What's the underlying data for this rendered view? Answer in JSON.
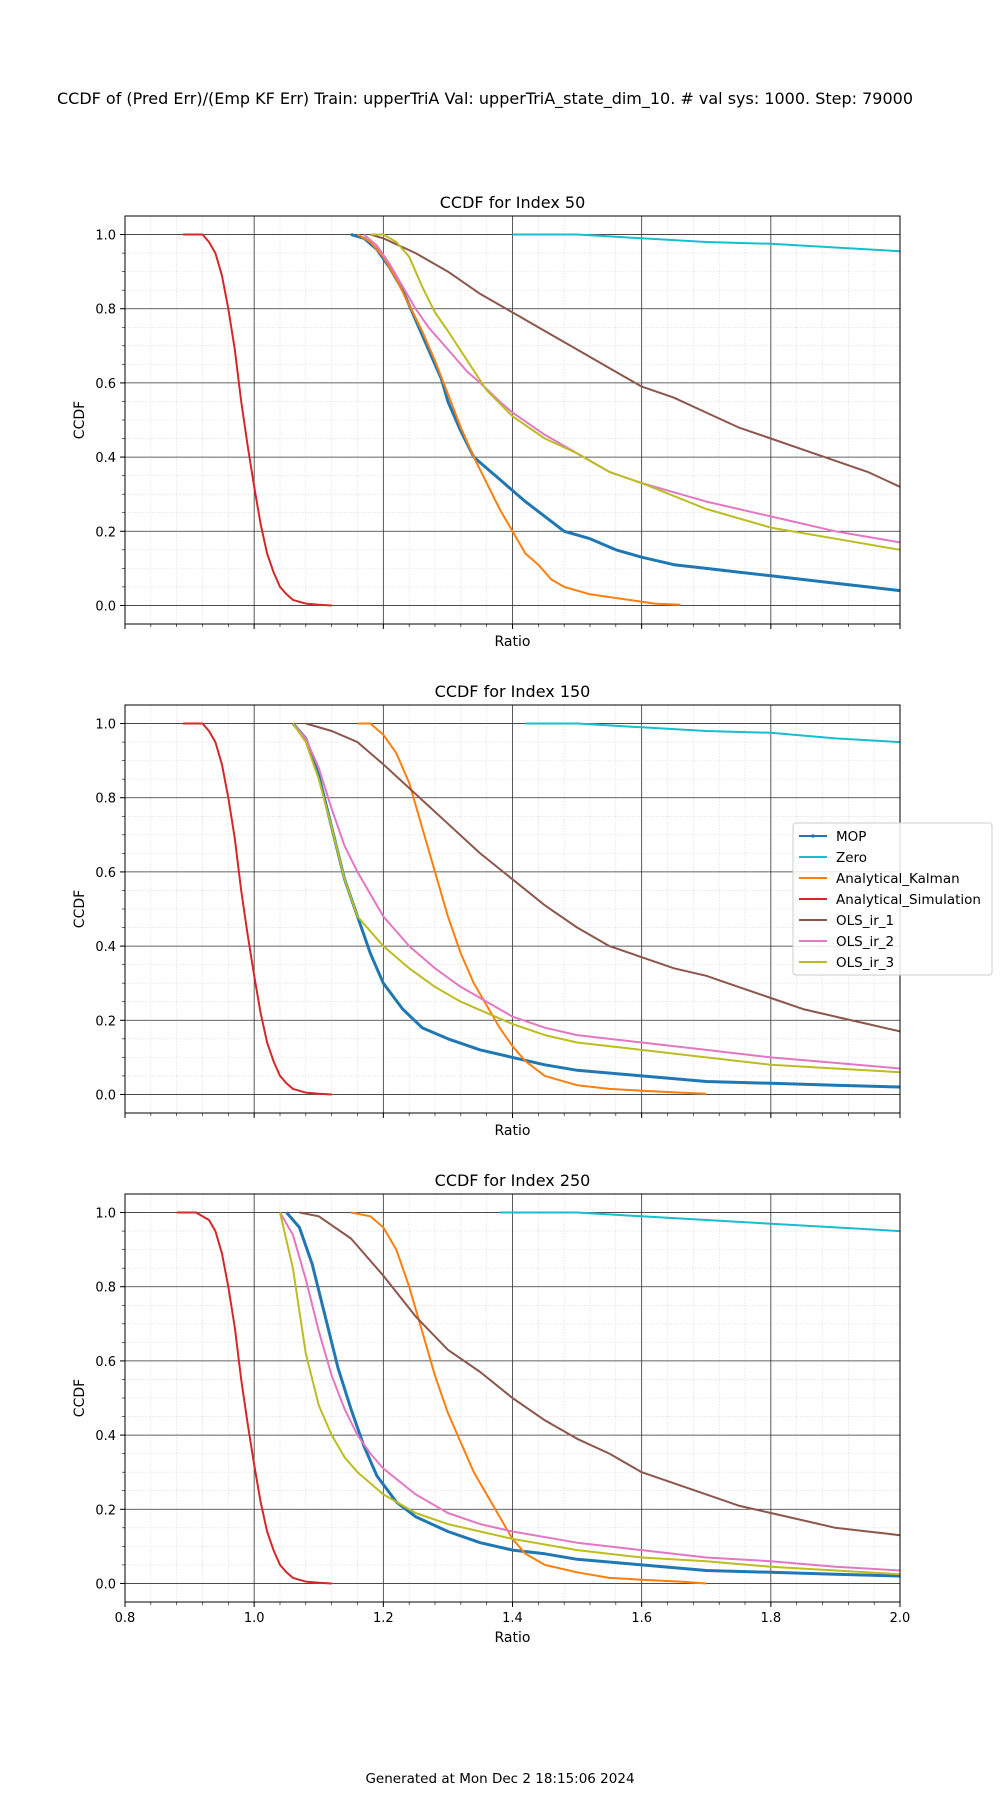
{
  "suptitle": "CCDF of (Pred Err)/(Emp KF Err) Train: upperTriA Val: upperTriA_state_dim_10. # val sys: 1000. Step: 79000",
  "footer": "Generated at Mon Dec  2 18:15:06 2024",
  "chart_data": [
    {
      "type": "line",
      "title": "CCDF for Index 50",
      "xlabel": "Ratio",
      "ylabel": "CCDF",
      "xlim": [
        0.8,
        2.0
      ],
      "ylim": [
        -0.05,
        1.05
      ],
      "xticks": [
        0.8,
        1.0,
        1.2,
        1.4,
        1.6,
        1.8,
        2.0
      ],
      "yticks": [
        0.0,
        0.2,
        0.4,
        0.6,
        0.8,
        1.0
      ],
      "show_xtick_labels": false,
      "grid": true,
      "series": [
        {
          "name": "MOP",
          "color": "#1f77b4",
          "marker": true,
          "x": [
            1.15,
            1.17,
            1.19,
            1.21,
            1.23,
            1.25,
            1.27,
            1.29,
            1.3,
            1.32,
            1.34,
            1.36,
            1.38,
            1.4,
            1.42,
            1.45,
            1.48,
            1.52,
            1.56,
            1.6,
            1.65,
            1.7,
            1.75,
            1.8,
            1.85,
            1.9,
            1.95,
            2.0
          ],
          "y": [
            1.0,
            0.99,
            0.96,
            0.91,
            0.85,
            0.77,
            0.69,
            0.61,
            0.55,
            0.47,
            0.4,
            0.37,
            0.34,
            0.31,
            0.28,
            0.24,
            0.2,
            0.18,
            0.15,
            0.13,
            0.11,
            0.1,
            0.09,
            0.08,
            0.07,
            0.06,
            0.05,
            0.04
          ]
        },
        {
          "name": "Zero",
          "color": "#17becf",
          "marker": false,
          "x": [
            1.4,
            1.5,
            1.55,
            1.6,
            1.7,
            1.8,
            1.9,
            2.0
          ],
          "y": [
            1.0,
            1.0,
            0.995,
            0.99,
            0.98,
            0.975,
            0.965,
            0.955
          ]
        },
        {
          "name": "Analytical_Kalman",
          "color": "#ff7f0e",
          "marker": false,
          "x": [
            1.16,
            1.18,
            1.2,
            1.22,
            1.24,
            1.26,
            1.28,
            1.3,
            1.32,
            1.34,
            1.36,
            1.38,
            1.4,
            1.42,
            1.44,
            1.46,
            1.48,
            1.5,
            1.52,
            1.56,
            1.62,
            1.66
          ],
          "y": [
            1.0,
            0.98,
            0.94,
            0.88,
            0.81,
            0.74,
            0.66,
            0.57,
            0.48,
            0.4,
            0.33,
            0.26,
            0.2,
            0.14,
            0.11,
            0.07,
            0.05,
            0.04,
            0.03,
            0.02,
            0.005,
            0.002
          ]
        },
        {
          "name": "Analytical_Simulation",
          "color": "#d62728",
          "marker": false,
          "x": [
            0.89,
            0.92,
            0.93,
            0.94,
            0.95,
            0.96,
            0.97,
            0.98,
            0.99,
            1.0,
            1.01,
            1.02,
            1.03,
            1.04,
            1.05,
            1.06,
            1.08,
            1.1,
            1.12
          ],
          "y": [
            1.0,
            1.0,
            0.98,
            0.95,
            0.89,
            0.8,
            0.69,
            0.55,
            0.43,
            0.32,
            0.22,
            0.14,
            0.09,
            0.05,
            0.03,
            0.015,
            0.005,
            0.002,
            0.0
          ]
        },
        {
          "name": "OLS_ir_1",
          "color": "#8c564b",
          "marker": false,
          "x": [
            1.18,
            1.2,
            1.25,
            1.3,
            1.35,
            1.4,
            1.45,
            1.5,
            1.55,
            1.6,
            1.65,
            1.7,
            1.75,
            1.8,
            1.85,
            1.9,
            1.95,
            2.0
          ],
          "y": [
            1.0,
            0.99,
            0.95,
            0.9,
            0.84,
            0.79,
            0.74,
            0.69,
            0.64,
            0.59,
            0.56,
            0.52,
            0.48,
            0.45,
            0.42,
            0.39,
            0.36,
            0.32
          ]
        },
        {
          "name": "OLS_ir_2",
          "color": "#e377c2",
          "marker": false,
          "x": [
            1.17,
            1.19,
            1.21,
            1.23,
            1.25,
            1.27,
            1.29,
            1.31,
            1.33,
            1.35,
            1.38,
            1.4,
            1.45,
            1.5,
            1.55,
            1.6,
            1.7,
            1.8,
            1.9,
            2.0
          ],
          "y": [
            1.0,
            0.97,
            0.92,
            0.86,
            0.8,
            0.75,
            0.71,
            0.67,
            0.63,
            0.6,
            0.55,
            0.52,
            0.46,
            0.41,
            0.36,
            0.33,
            0.28,
            0.24,
            0.2,
            0.17
          ]
        },
        {
          "name": "OLS_ir_3",
          "color": "#bcbd22",
          "marker": false,
          "x": [
            1.18,
            1.2,
            1.22,
            1.24,
            1.26,
            1.28,
            1.3,
            1.33,
            1.36,
            1.4,
            1.45,
            1.5,
            1.55,
            1.6,
            1.7,
            1.8,
            1.9,
            2.0
          ],
          "y": [
            1.0,
            1.0,
            0.98,
            0.94,
            0.86,
            0.79,
            0.74,
            0.66,
            0.58,
            0.51,
            0.45,
            0.41,
            0.36,
            0.33,
            0.26,
            0.21,
            0.18,
            0.15
          ]
        }
      ]
    },
    {
      "type": "line",
      "title": "CCDF for Index 150",
      "xlabel": "Ratio",
      "ylabel": "CCDF",
      "xlim": [
        0.8,
        2.0
      ],
      "ylim": [
        -0.05,
        1.05
      ],
      "xticks": [
        0.8,
        1.0,
        1.2,
        1.4,
        1.6,
        1.8,
        2.0
      ],
      "yticks": [
        0.0,
        0.2,
        0.4,
        0.6,
        0.8,
        1.0
      ],
      "show_xtick_labels": false,
      "grid": true,
      "series": [
        {
          "name": "MOP",
          "color": "#1f77b4",
          "marker": true,
          "x": [
            1.06,
            1.08,
            1.1,
            1.12,
            1.14,
            1.16,
            1.18,
            1.2,
            1.23,
            1.26,
            1.3,
            1.35,
            1.4,
            1.45,
            1.5,
            1.6,
            1.7,
            1.8,
            1.9,
            2.0
          ],
          "y": [
            1.0,
            0.96,
            0.86,
            0.72,
            0.58,
            0.48,
            0.38,
            0.3,
            0.23,
            0.18,
            0.15,
            0.12,
            0.1,
            0.08,
            0.065,
            0.05,
            0.035,
            0.03,
            0.025,
            0.02
          ]
        },
        {
          "name": "Zero",
          "color": "#17becf",
          "marker": false,
          "x": [
            1.42,
            1.5,
            1.6,
            1.7,
            1.8,
            1.9,
            2.0
          ],
          "y": [
            1.0,
            1.0,
            0.99,
            0.98,
            0.975,
            0.96,
            0.95
          ]
        },
        {
          "name": "Analytical_Kalman",
          "color": "#ff7f0e",
          "marker": false,
          "x": [
            1.16,
            1.18,
            1.2,
            1.22,
            1.24,
            1.26,
            1.28,
            1.3,
            1.32,
            1.34,
            1.36,
            1.38,
            1.4,
            1.42,
            1.45,
            1.5,
            1.55,
            1.6,
            1.66,
            1.7
          ],
          "y": [
            1.0,
            1.0,
            0.97,
            0.92,
            0.84,
            0.72,
            0.6,
            0.48,
            0.38,
            0.3,
            0.24,
            0.18,
            0.13,
            0.09,
            0.05,
            0.025,
            0.015,
            0.01,
            0.005,
            0.002
          ]
        },
        {
          "name": "Analytical_Simulation",
          "color": "#d62728",
          "marker": false,
          "x": [
            0.89,
            0.92,
            0.93,
            0.94,
            0.95,
            0.96,
            0.97,
            0.98,
            0.99,
            1.0,
            1.01,
            1.02,
            1.03,
            1.04,
            1.05,
            1.06,
            1.08,
            1.1,
            1.12
          ],
          "y": [
            1.0,
            1.0,
            0.98,
            0.95,
            0.89,
            0.8,
            0.69,
            0.55,
            0.43,
            0.32,
            0.22,
            0.14,
            0.09,
            0.05,
            0.03,
            0.015,
            0.005,
            0.002,
            0.0
          ]
        },
        {
          "name": "OLS_ir_1",
          "color": "#8c564b",
          "marker": false,
          "x": [
            1.08,
            1.12,
            1.16,
            1.2,
            1.25,
            1.3,
            1.35,
            1.4,
            1.45,
            1.5,
            1.55,
            1.6,
            1.65,
            1.7,
            1.75,
            1.8,
            1.85,
            1.9,
            1.95,
            2.0
          ],
          "y": [
            1.0,
            0.98,
            0.95,
            0.89,
            0.81,
            0.73,
            0.65,
            0.58,
            0.51,
            0.45,
            0.4,
            0.37,
            0.34,
            0.32,
            0.29,
            0.26,
            0.23,
            0.21,
            0.19,
            0.17
          ]
        },
        {
          "name": "OLS_ir_2",
          "color": "#e377c2",
          "marker": false,
          "x": [
            1.06,
            1.08,
            1.1,
            1.12,
            1.14,
            1.16,
            1.18,
            1.2,
            1.24,
            1.28,
            1.32,
            1.36,
            1.4,
            1.45,
            1.5,
            1.6,
            1.7,
            1.8,
            1.9,
            2.0
          ],
          "y": [
            1.0,
            0.96,
            0.88,
            0.77,
            0.67,
            0.6,
            0.54,
            0.48,
            0.4,
            0.34,
            0.29,
            0.25,
            0.21,
            0.18,
            0.16,
            0.14,
            0.12,
            0.1,
            0.085,
            0.07
          ]
        },
        {
          "name": "OLS_ir_3",
          "color": "#bcbd22",
          "marker": false,
          "x": [
            1.06,
            1.08,
            1.1,
            1.12,
            1.14,
            1.16,
            1.18,
            1.2,
            1.24,
            1.28,
            1.32,
            1.36,
            1.4,
            1.45,
            1.5,
            1.6,
            1.7,
            1.8,
            1.9,
            2.0
          ],
          "y": [
            1.0,
            0.95,
            0.85,
            0.72,
            0.58,
            0.48,
            0.44,
            0.4,
            0.34,
            0.29,
            0.25,
            0.22,
            0.19,
            0.16,
            0.14,
            0.12,
            0.1,
            0.08,
            0.07,
            0.06
          ]
        }
      ]
    },
    {
      "type": "line",
      "title": "CCDF for Index 250",
      "xlabel": "Ratio",
      "ylabel": "CCDF",
      "xlim": [
        0.8,
        2.0
      ],
      "ylim": [
        -0.05,
        1.05
      ],
      "xticks": [
        0.8,
        1.0,
        1.2,
        1.4,
        1.6,
        1.8,
        2.0
      ],
      "yticks": [
        0.0,
        0.2,
        0.4,
        0.6,
        0.8,
        1.0
      ],
      "show_xtick_labels": true,
      "grid": true,
      "series": [
        {
          "name": "MOP",
          "color": "#1f77b4",
          "marker": true,
          "x": [
            1.05,
            1.07,
            1.09,
            1.11,
            1.13,
            1.15,
            1.17,
            1.19,
            1.22,
            1.25,
            1.3,
            1.35,
            1.4,
            1.45,
            1.5,
            1.6,
            1.7,
            1.8,
            1.9,
            2.0
          ],
          "y": [
            1.0,
            0.96,
            0.86,
            0.72,
            0.58,
            0.47,
            0.37,
            0.29,
            0.22,
            0.18,
            0.14,
            0.11,
            0.09,
            0.08,
            0.065,
            0.05,
            0.035,
            0.03,
            0.025,
            0.02
          ]
        },
        {
          "name": "Zero",
          "color": "#17becf",
          "marker": false,
          "x": [
            1.38,
            1.5,
            1.6,
            1.7,
            1.8,
            1.9,
            2.0
          ],
          "y": [
            1.0,
            1.0,
            0.99,
            0.98,
            0.97,
            0.96,
            0.95
          ]
        },
        {
          "name": "Analytical_Kalman",
          "color": "#ff7f0e",
          "marker": false,
          "x": [
            1.15,
            1.18,
            1.2,
            1.22,
            1.24,
            1.26,
            1.28,
            1.3,
            1.32,
            1.34,
            1.36,
            1.38,
            1.4,
            1.42,
            1.45,
            1.5,
            1.55,
            1.6,
            1.66,
            1.7
          ],
          "y": [
            1.0,
            0.99,
            0.96,
            0.9,
            0.8,
            0.68,
            0.56,
            0.46,
            0.38,
            0.3,
            0.24,
            0.18,
            0.12,
            0.08,
            0.05,
            0.03,
            0.015,
            0.01,
            0.005,
            0.0
          ]
        },
        {
          "name": "Analytical_Simulation",
          "color": "#d62728",
          "marker": false,
          "x": [
            0.88,
            0.91,
            0.93,
            0.94,
            0.95,
            0.96,
            0.97,
            0.98,
            0.99,
            1.0,
            1.01,
            1.02,
            1.03,
            1.04,
            1.05,
            1.06,
            1.08,
            1.1,
            1.12
          ],
          "y": [
            1.0,
            1.0,
            0.98,
            0.95,
            0.89,
            0.8,
            0.69,
            0.55,
            0.43,
            0.32,
            0.22,
            0.14,
            0.09,
            0.05,
            0.03,
            0.015,
            0.005,
            0.002,
            0.0
          ]
        },
        {
          "name": "OLS_ir_1",
          "color": "#8c564b",
          "marker": false,
          "x": [
            1.07,
            1.1,
            1.15,
            1.2,
            1.25,
            1.3,
            1.35,
            1.4,
            1.45,
            1.5,
            1.55,
            1.6,
            1.65,
            1.7,
            1.75,
            1.8,
            1.85,
            1.9,
            1.95,
            2.0
          ],
          "y": [
            1.0,
            0.99,
            0.93,
            0.83,
            0.72,
            0.63,
            0.57,
            0.5,
            0.44,
            0.39,
            0.35,
            0.3,
            0.27,
            0.24,
            0.21,
            0.19,
            0.17,
            0.15,
            0.14,
            0.13
          ]
        },
        {
          "name": "OLS_ir_2",
          "color": "#e377c2",
          "marker": false,
          "x": [
            1.04,
            1.06,
            1.08,
            1.1,
            1.12,
            1.14,
            1.16,
            1.18,
            1.2,
            1.25,
            1.3,
            1.35,
            1.4,
            1.5,
            1.6,
            1.7,
            1.8,
            1.9,
            2.0
          ],
          "y": [
            1.0,
            0.94,
            0.82,
            0.68,
            0.56,
            0.47,
            0.4,
            0.35,
            0.31,
            0.24,
            0.19,
            0.16,
            0.14,
            0.11,
            0.09,
            0.07,
            0.06,
            0.045,
            0.035
          ]
        },
        {
          "name": "OLS_ir_3",
          "color": "#bcbd22",
          "marker": false,
          "x": [
            1.04,
            1.06,
            1.08,
            1.1,
            1.12,
            1.14,
            1.16,
            1.18,
            1.2,
            1.25,
            1.3,
            1.35,
            1.4,
            1.5,
            1.6,
            1.7,
            1.8,
            1.9,
            2.0
          ],
          "y": [
            1.0,
            0.85,
            0.62,
            0.48,
            0.4,
            0.34,
            0.3,
            0.27,
            0.24,
            0.19,
            0.16,
            0.14,
            0.12,
            0.09,
            0.07,
            0.06,
            0.045,
            0.035,
            0.025
          ]
        }
      ]
    }
  ],
  "legend": {
    "placement": "right of middle panel",
    "entries": [
      "MOP",
      "Zero",
      "Analytical_Kalman",
      "Analytical_Simulation",
      "OLS_ir_1",
      "OLS_ir_2",
      "OLS_ir_3"
    ]
  }
}
